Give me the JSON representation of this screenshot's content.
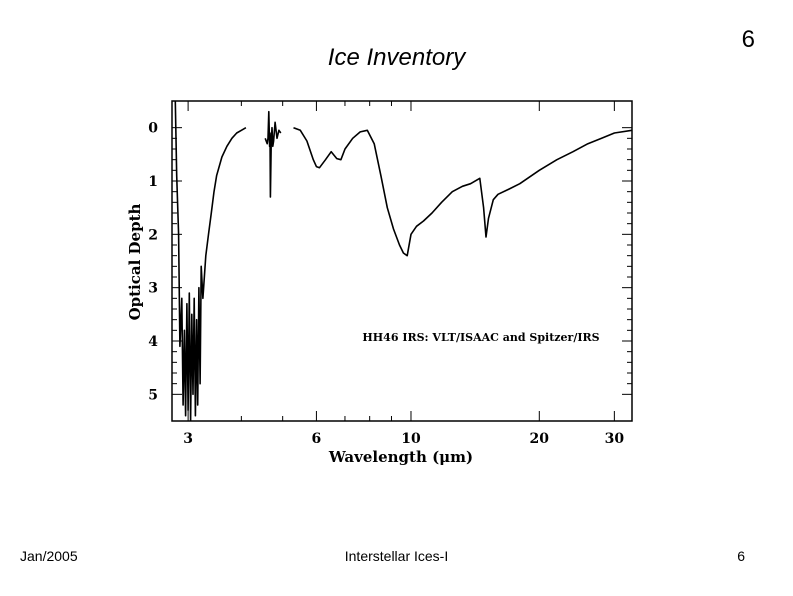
{
  "slide": {
    "title": "Ice Inventory",
    "slide_number_top": "6",
    "footer_left": "Jan/2005",
    "footer_center": "Interstellar Ices-I",
    "footer_right": "6"
  },
  "chart_data": {
    "type": "line",
    "annotation": "HH46 IRS: VLT/ISAAC and Spitzer/IRS",
    "xlabel": "Wavelength (μm)",
    "ylabel": "Optical Depth",
    "x_scale": "log",
    "y_inverted": true,
    "xlim": [
      2.75,
      33
    ],
    "ylim": [
      5.5,
      -0.5
    ],
    "xticks": [
      3,
      6,
      10,
      20,
      30
    ],
    "yticks": [
      0,
      1,
      2,
      3,
      4,
      5
    ],
    "grid": false,
    "series": [
      {
        "segment": "VLT/ISAAC L-band",
        "x": [
          2.8,
          2.82,
          2.85,
          2.87,
          2.9,
          2.92,
          2.94,
          2.96,
          2.98,
          3.0,
          3.02,
          3.04,
          3.06,
          3.08,
          3.1,
          3.12,
          3.14,
          3.16,
          3.18,
          3.2,
          3.22,
          3.25,
          3.3,
          3.35,
          3.4,
          3.45,
          3.5,
          3.6,
          3.7,
          3.8,
          3.9,
          4.0,
          4.1
        ],
        "y": [
          -0.5,
          0.9,
          2.0,
          4.1,
          3.2,
          5.2,
          3.8,
          5.4,
          3.3,
          5.3,
          3.1,
          5.5,
          3.5,
          5.0,
          3.2,
          5.4,
          3.6,
          5.2,
          3.0,
          4.8,
          2.6,
          3.2,
          2.4,
          2.0,
          1.6,
          1.2,
          0.9,
          0.55,
          0.35,
          0.2,
          0.1,
          0.05,
          0.0
        ]
      },
      {
        "segment": "VLT/ISAAC M-band",
        "x": [
          4.55,
          4.6,
          4.62,
          4.64,
          4.66,
          4.67,
          4.68,
          4.7,
          4.72,
          4.74,
          4.76,
          4.8,
          4.85,
          4.9,
          4.95
        ],
        "y": [
          0.2,
          0.3,
          0.2,
          -0.3,
          0.35,
          0.1,
          1.3,
          0.3,
          0.0,
          0.35,
          0.25,
          -0.1,
          0.2,
          0.05,
          0.1
        ]
      },
      {
        "segment": "Spitzer/IRS",
        "x": [
          5.3,
          5.5,
          5.7,
          5.9,
          6.0,
          6.1,
          6.3,
          6.5,
          6.7,
          6.85,
          7.0,
          7.3,
          7.6,
          7.9,
          8.2,
          8.5,
          8.8,
          9.1,
          9.4,
          9.6,
          9.8,
          10.0,
          10.3,
          10.7,
          11.2,
          11.8,
          12.5,
          13.2,
          13.8,
          14.5,
          14.8,
          15.0,
          15.2,
          15.6,
          16.0,
          17.0,
          18.0,
          20.0,
          22.0,
          24.0,
          26.0,
          28.0,
          30.0,
          33.0
        ],
        "y": [
          0.0,
          0.05,
          0.25,
          0.6,
          0.73,
          0.75,
          0.6,
          0.45,
          0.58,
          0.6,
          0.4,
          0.2,
          0.08,
          0.05,
          0.3,
          0.9,
          1.5,
          1.9,
          2.2,
          2.35,
          2.4,
          2.0,
          1.85,
          1.75,
          1.6,
          1.4,
          1.2,
          1.1,
          1.05,
          0.95,
          1.5,
          2.05,
          1.7,
          1.35,
          1.25,
          1.15,
          1.05,
          0.8,
          0.6,
          0.45,
          0.3,
          0.2,
          0.1,
          0.05
        ]
      }
    ]
  }
}
